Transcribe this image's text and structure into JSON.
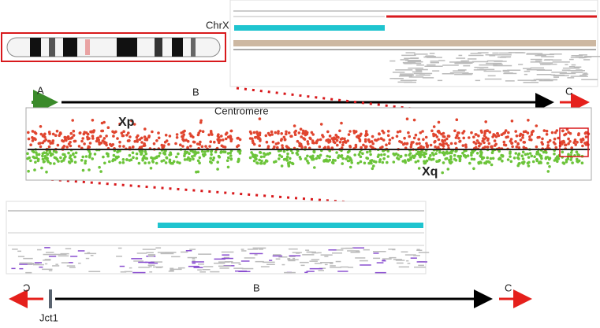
{
  "top_panel": {
    "label": "ChrX"
  },
  "overview": {
    "arrow_a": "A",
    "arrow_b": "B",
    "arrow_c": "C",
    "centromere": "Centromere",
    "p_arm": "Xp",
    "q_arm": "Xq"
  },
  "junction": {
    "left_label": "Ɔ",
    "junction_label": "Jct1",
    "arrow_b": "B",
    "arrow_c": "C"
  }
}
